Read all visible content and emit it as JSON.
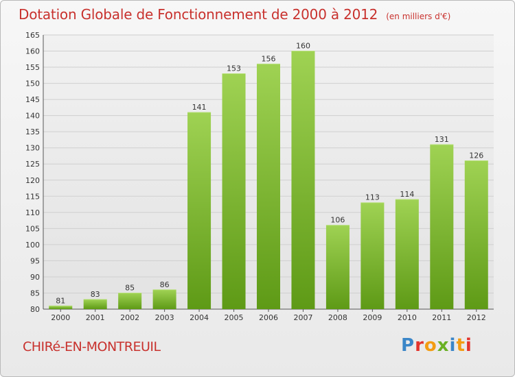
{
  "title": "Dotation Globale de Fonctionnement de 2000 à 2012",
  "unit_note": "(en milliers d'€)",
  "commune": "CHIRé-EN-MONTREUIL",
  "brand": "Proxiti",
  "colors": {
    "title": "#c8312d",
    "bar_top": "#9fd253",
    "bar_bottom": "#5e9a16",
    "grid": "#cfcfcf"
  },
  "chart_data": {
    "type": "bar",
    "title": "Dotation Globale de Fonctionnement de 2000 à 2012",
    "subtitle": "(en milliers d'€)",
    "categories": [
      "2000",
      "2001",
      "2002",
      "2003",
      "2004",
      "2005",
      "2006",
      "2007",
      "2008",
      "2009",
      "2010",
      "2011",
      "2012"
    ],
    "values": [
      81,
      83,
      85,
      86,
      141,
      153,
      156,
      160,
      106,
      113,
      114,
      131,
      126
    ],
    "ylim": [
      80,
      165
    ],
    "yticks": [
      80,
      85,
      90,
      95,
      100,
      105,
      110,
      115,
      120,
      125,
      130,
      135,
      140,
      145,
      150,
      155,
      160,
      165
    ],
    "grid": true,
    "data_labels": true
  }
}
